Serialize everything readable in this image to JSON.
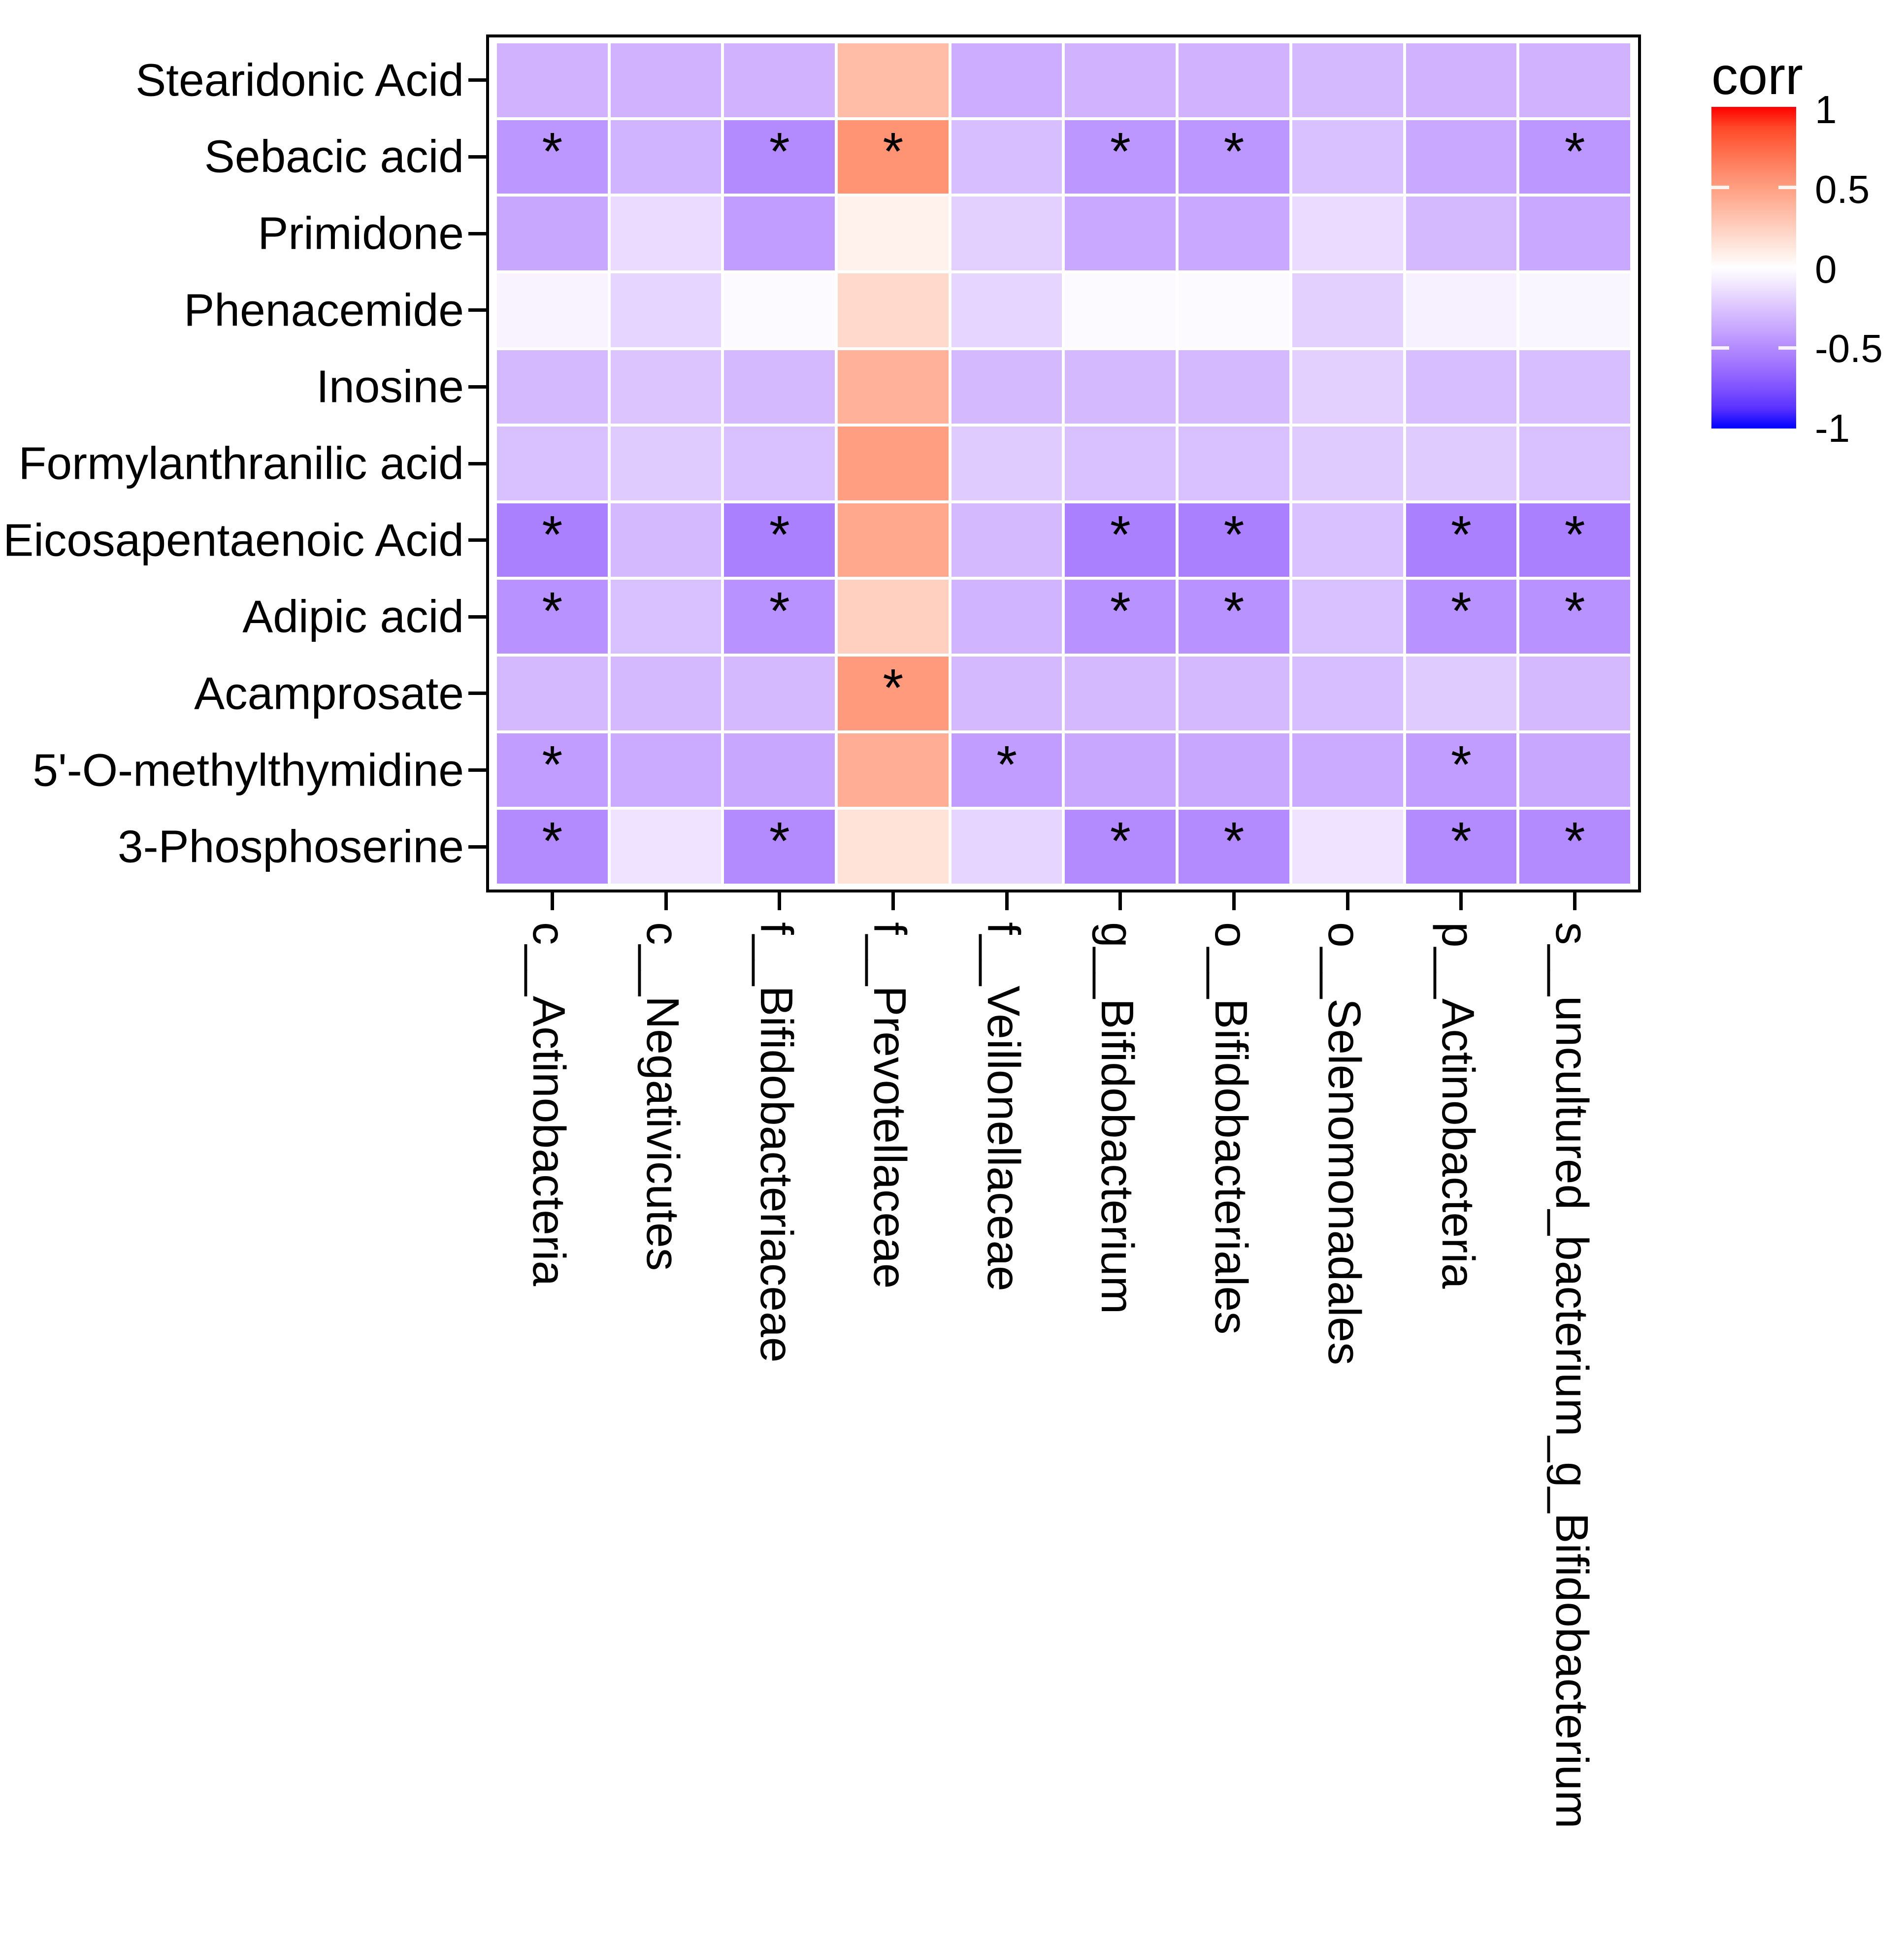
{
  "legend": {
    "title": "corr",
    "tick_labels": [
      "1",
      "0.5",
      "0",
      "-0.5",
      "-1"
    ]
  },
  "chart_data": {
    "type": "heatmap",
    "title": "",
    "x_categories": [
      "c__Actinobacteria",
      "c__Negativicutes",
      "f__Bifidobacteriaceae",
      "f__Prevotellaceae",
      "f__Veillonellaceae",
      "g__Bifidobacterium",
      "o__Bifidobacteriales",
      "o__Selenomonadales",
      "p__Actinobacteria",
      "s__uncultured_bacterium_g_Bifidobacterium"
    ],
    "y_categories": [
      "Stearidonic Acid",
      "Sebacic acid",
      "Primidone",
      "Phenacemide",
      "Inosine",
      "Formylanthranilic acid",
      "Eicosapentaenoic Acid",
      "Adipic acid",
      "Acamprosate",
      "5'-O-methylthymidine",
      "3-Phosphoserine"
    ],
    "values": [
      [
        -0.33,
        -0.33,
        -0.33,
        0.35,
        -0.35,
        -0.33,
        -0.33,
        -0.3,
        -0.33,
        -0.33
      ],
      [
        -0.45,
        -0.32,
        -0.5,
        0.55,
        -0.28,
        -0.45,
        -0.45,
        -0.27,
        -0.37,
        -0.45
      ],
      [
        -0.38,
        -0.15,
        -0.42,
        0.07,
        -0.2,
        -0.37,
        -0.37,
        -0.15,
        -0.3,
        -0.37
      ],
      [
        -0.05,
        -0.18,
        -0.02,
        0.2,
        -0.18,
        -0.02,
        -0.02,
        -0.2,
        -0.06,
        -0.04
      ],
      [
        -0.3,
        -0.25,
        -0.3,
        0.4,
        -0.3,
        -0.3,
        -0.3,
        -0.2,
        -0.28,
        -0.28
      ],
      [
        -0.27,
        -0.22,
        -0.27,
        0.5,
        -0.22,
        -0.27,
        -0.27,
        -0.22,
        -0.22,
        -0.27
      ],
      [
        -0.55,
        -0.3,
        -0.55,
        0.45,
        -0.3,
        -0.55,
        -0.55,
        -0.27,
        -0.55,
        -0.55
      ],
      [
        -0.47,
        -0.27,
        -0.47,
        0.25,
        -0.32,
        -0.47,
        -0.47,
        -0.27,
        -0.47,
        -0.47
      ],
      [
        -0.3,
        -0.3,
        -0.3,
        0.52,
        -0.3,
        -0.3,
        -0.3,
        -0.28,
        -0.22,
        -0.3
      ],
      [
        -0.42,
        -0.36,
        -0.38,
        0.42,
        -0.42,
        -0.38,
        -0.38,
        -0.36,
        -0.42,
        -0.38
      ],
      [
        -0.5,
        -0.12,
        -0.5,
        0.15,
        -0.18,
        -0.5,
        -0.5,
        -0.12,
        -0.5,
        -0.5
      ]
    ],
    "significance": [
      [
        0,
        0,
        0,
        0,
        0,
        0,
        0,
        0,
        0,
        0
      ],
      [
        1,
        0,
        1,
        1,
        0,
        1,
        1,
        0,
        0,
        1
      ],
      [
        0,
        0,
        0,
        0,
        0,
        0,
        0,
        0,
        0,
        0
      ],
      [
        0,
        0,
        0,
        0,
        0,
        0,
        0,
        0,
        0,
        0
      ],
      [
        0,
        0,
        0,
        0,
        0,
        0,
        0,
        0,
        0,
        0
      ],
      [
        0,
        0,
        0,
        0,
        0,
        0,
        0,
        0,
        0,
        0
      ],
      [
        1,
        0,
        1,
        0,
        0,
        1,
        1,
        0,
        1,
        1
      ],
      [
        1,
        0,
        1,
        0,
        0,
        1,
        1,
        0,
        1,
        1
      ],
      [
        0,
        0,
        0,
        1,
        0,
        0,
        0,
        0,
        0,
        0
      ],
      [
        1,
        0,
        0,
        0,
        1,
        0,
        0,
        0,
        1,
        0
      ],
      [
        1,
        0,
        1,
        0,
        0,
        1,
        1,
        0,
        1,
        1
      ]
    ],
    "significance_marker": "*",
    "colorbar": {
      "title": "corr",
      "domain": [
        -1,
        1
      ],
      "ticks": [
        1,
        0.5,
        0,
        -0.5,
        -1
      ],
      "low_color": "#0000FF",
      "mid_color": "#FFFFFF",
      "high_color": "#FF0000",
      "interpolation": "lab",
      "position": "right"
    },
    "axis_text_rotation_x": 90,
    "grid": false
  }
}
